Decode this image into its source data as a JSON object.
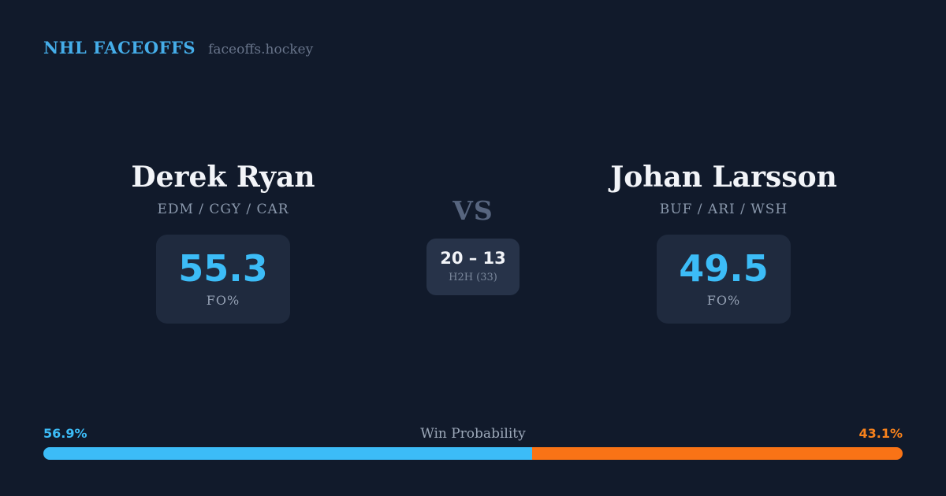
{
  "header": {
    "title": "NHL FACEOFFS",
    "site": "faceoffs.hockey"
  },
  "players": {
    "left": {
      "name": "Derek Ryan",
      "teams": "EDM / CGY / CAR",
      "fo_pct": "55.3",
      "stat_label": "FO%"
    },
    "right": {
      "name": "Johan Larsson",
      "teams": "BUF / ARI / WSH",
      "fo_pct": "49.5",
      "stat_label": "FO%"
    }
  },
  "matchup": {
    "vs_label": "VS",
    "h2h_score": "20 – 13",
    "h2h_label": "H2H (33)"
  },
  "win_probability": {
    "label": "Win Probability",
    "left_pct": 56.9,
    "right_pct": 43.1,
    "left_display": "56.9%",
    "right_display": "43.1%"
  },
  "colors": {
    "background": "#111a2b",
    "card": "#1f2a3e",
    "h2h_box": "#273349",
    "accent_blue": "#3cbcf7",
    "accent_orange": "#f97316"
  }
}
